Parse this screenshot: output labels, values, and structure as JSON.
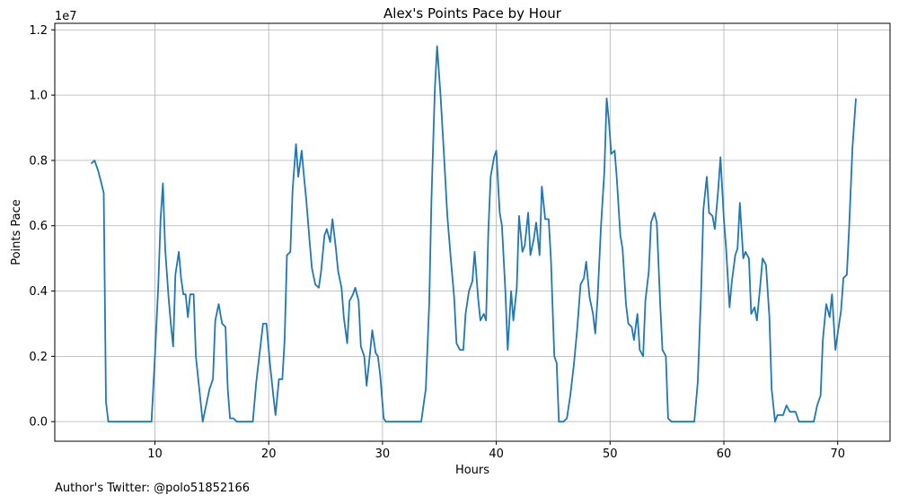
{
  "chart_data": {
    "type": "line",
    "title": "Alex's Points Pace by Hour",
    "xlabel": "Hours",
    "ylabel": "Points Pace",
    "y_offset_label": "1e7",
    "xlim": [
      1.2,
      74.6
    ],
    "ylim": [
      -0.06,
      1.22
    ],
    "x_ticks": [
      10,
      20,
      30,
      40,
      50,
      60,
      70
    ],
    "x_tick_labels": [
      "10",
      "20",
      "30",
      "40",
      "50",
      "60",
      "70"
    ],
    "y_ticks": [
      0.0,
      0.2,
      0.4,
      0.6,
      0.8,
      1.0,
      1.2
    ],
    "y_tick_labels": [
      "0.0",
      "0.2",
      "0.4",
      "0.6",
      "0.8",
      "1.0",
      "1.2"
    ],
    "grid": true,
    "series": [
      {
        "color": "#1f77b4",
        "points": [
          [
            4.4,
            0.79
          ],
          [
            4.7,
            0.8
          ],
          [
            5.0,
            0.77
          ],
          [
            5.3,
            0.73
          ],
          [
            5.5,
            0.7
          ],
          [
            5.7,
            0.06
          ],
          [
            5.9,
            0.0
          ],
          [
            6.5,
            0.0
          ],
          [
            7.5,
            0.0
          ],
          [
            8.5,
            0.0
          ],
          [
            9.7,
            0.0
          ],
          [
            10.0,
            0.2
          ],
          [
            10.3,
            0.42
          ],
          [
            10.5,
            0.62
          ],
          [
            10.7,
            0.73
          ],
          [
            10.9,
            0.53
          ],
          [
            11.2,
            0.38
          ],
          [
            11.4,
            0.3
          ],
          [
            11.6,
            0.23
          ],
          [
            11.8,
            0.45
          ],
          [
            12.1,
            0.52
          ],
          [
            12.3,
            0.44
          ],
          [
            12.5,
            0.39
          ],
          [
            12.7,
            0.39
          ],
          [
            12.9,
            0.32
          ],
          [
            13.1,
            0.39
          ],
          [
            13.4,
            0.39
          ],
          [
            13.6,
            0.2
          ],
          [
            13.9,
            0.1
          ],
          [
            14.2,
            0.0
          ],
          [
            14.5,
            0.05
          ],
          [
            14.8,
            0.1
          ],
          [
            15.1,
            0.13
          ],
          [
            15.3,
            0.31
          ],
          [
            15.6,
            0.36
          ],
          [
            15.9,
            0.3
          ],
          [
            16.2,
            0.29
          ],
          [
            16.4,
            0.1
          ],
          [
            16.6,
            0.01
          ],
          [
            16.9,
            0.01
          ],
          [
            17.2,
            0.0
          ],
          [
            17.6,
            0.0
          ],
          [
            18.2,
            0.0
          ],
          [
            18.6,
            0.0
          ],
          [
            18.9,
            0.12
          ],
          [
            19.2,
            0.21
          ],
          [
            19.5,
            0.3
          ],
          [
            19.8,
            0.3
          ],
          [
            20.1,
            0.18
          ],
          [
            20.4,
            0.08
          ],
          [
            20.6,
            0.02
          ],
          [
            20.9,
            0.13
          ],
          [
            21.2,
            0.13
          ],
          [
            21.4,
            0.25
          ],
          [
            21.6,
            0.51
          ],
          [
            21.9,
            0.52
          ],
          [
            22.1,
            0.71
          ],
          [
            22.4,
            0.85
          ],
          [
            22.6,
            0.75
          ],
          [
            22.9,
            0.83
          ],
          [
            23.1,
            0.75
          ],
          [
            23.3,
            0.68
          ],
          [
            23.6,
            0.55
          ],
          [
            23.8,
            0.47
          ],
          [
            24.1,
            0.42
          ],
          [
            24.4,
            0.41
          ],
          [
            24.6,
            0.46
          ],
          [
            24.9,
            0.57
          ],
          [
            25.1,
            0.59
          ],
          [
            25.4,
            0.55
          ],
          [
            25.6,
            0.62
          ],
          [
            25.9,
            0.53
          ],
          [
            26.1,
            0.46
          ],
          [
            26.4,
            0.41
          ],
          [
            26.6,
            0.32
          ],
          [
            26.9,
            0.24
          ],
          [
            27.1,
            0.37
          ],
          [
            27.4,
            0.39
          ],
          [
            27.6,
            0.41
          ],
          [
            27.9,
            0.37
          ],
          [
            28.1,
            0.23
          ],
          [
            28.4,
            0.2
          ],
          [
            28.6,
            0.11
          ],
          [
            28.9,
            0.21
          ],
          [
            29.1,
            0.28
          ],
          [
            29.4,
            0.21
          ],
          [
            29.6,
            0.2
          ],
          [
            29.8,
            0.14
          ],
          [
            30.1,
            0.01
          ],
          [
            30.3,
            0.0
          ],
          [
            31.0,
            0.0
          ],
          [
            32.0,
            0.0
          ],
          [
            33.0,
            0.0
          ],
          [
            33.4,
            0.0
          ],
          [
            33.8,
            0.1
          ],
          [
            34.1,
            0.36
          ],
          [
            34.3,
            0.68
          ],
          [
            34.6,
            1.02
          ],
          [
            34.8,
            1.15
          ],
          [
            35.1,
            1.0
          ],
          [
            35.4,
            0.82
          ],
          [
            35.7,
            0.63
          ],
          [
            36.0,
            0.5
          ],
          [
            36.3,
            0.38
          ],
          [
            36.5,
            0.24
          ],
          [
            36.8,
            0.22
          ],
          [
            37.1,
            0.22
          ],
          [
            37.3,
            0.33
          ],
          [
            37.6,
            0.4
          ],
          [
            37.9,
            0.43
          ],
          [
            38.1,
            0.52
          ],
          [
            38.4,
            0.38
          ],
          [
            38.6,
            0.31
          ],
          [
            38.9,
            0.33
          ],
          [
            39.1,
            0.31
          ],
          [
            39.3,
            0.58
          ],
          [
            39.5,
            0.75
          ],
          [
            39.8,
            0.81
          ],
          [
            40.0,
            0.83
          ],
          [
            40.3,
            0.64
          ],
          [
            40.5,
            0.6
          ],
          [
            40.8,
            0.4
          ],
          [
            41.0,
            0.22
          ],
          [
            41.3,
            0.4
          ],
          [
            41.5,
            0.31
          ],
          [
            41.8,
            0.41
          ],
          [
            42.0,
            0.63
          ],
          [
            42.3,
            0.52
          ],
          [
            42.5,
            0.54
          ],
          [
            42.8,
            0.64
          ],
          [
            43.0,
            0.51
          ],
          [
            43.3,
            0.56
          ],
          [
            43.5,
            0.61
          ],
          [
            43.8,
            0.51
          ],
          [
            44.0,
            0.72
          ],
          [
            44.3,
            0.62
          ],
          [
            44.6,
            0.62
          ],
          [
            44.8,
            0.5
          ],
          [
            45.1,
            0.2
          ],
          [
            45.3,
            0.18
          ],
          [
            45.5,
            0.0
          ],
          [
            45.9,
            0.0
          ],
          [
            46.2,
            0.01
          ],
          [
            46.5,
            0.08
          ],
          [
            46.8,
            0.17
          ],
          [
            47.1,
            0.28
          ],
          [
            47.4,
            0.42
          ],
          [
            47.7,
            0.44
          ],
          [
            47.9,
            0.49
          ],
          [
            48.2,
            0.38
          ],
          [
            48.5,
            0.33
          ],
          [
            48.7,
            0.27
          ],
          [
            48.9,
            0.38
          ],
          [
            49.2,
            0.6
          ],
          [
            49.5,
            0.77
          ],
          [
            49.7,
            0.99
          ],
          [
            49.9,
            0.92
          ],
          [
            50.1,
            0.82
          ],
          [
            50.4,
            0.83
          ],
          [
            50.6,
            0.74
          ],
          [
            50.9,
            0.57
          ],
          [
            51.1,
            0.53
          ],
          [
            51.4,
            0.36
          ],
          [
            51.6,
            0.3
          ],
          [
            51.9,
            0.29
          ],
          [
            52.1,
            0.25
          ],
          [
            52.4,
            0.33
          ],
          [
            52.6,
            0.22
          ],
          [
            52.9,
            0.2
          ],
          [
            53.1,
            0.37
          ],
          [
            53.4,
            0.46
          ],
          [
            53.6,
            0.61
          ],
          [
            53.9,
            0.64
          ],
          [
            54.1,
            0.61
          ],
          [
            54.4,
            0.36
          ],
          [
            54.6,
            0.22
          ],
          [
            54.9,
            0.2
          ],
          [
            55.1,
            0.01
          ],
          [
            55.4,
            0.0
          ],
          [
            56.0,
            0.0
          ],
          [
            57.0,
            0.0
          ],
          [
            57.4,
            0.0
          ],
          [
            57.7,
            0.12
          ],
          [
            58.0,
            0.4
          ],
          [
            58.2,
            0.65
          ],
          [
            58.5,
            0.75
          ],
          [
            58.7,
            0.64
          ],
          [
            59.0,
            0.63
          ],
          [
            59.2,
            0.59
          ],
          [
            59.5,
            0.71
          ],
          [
            59.7,
            0.81
          ],
          [
            60.0,
            0.62
          ],
          [
            60.2,
            0.53
          ],
          [
            60.5,
            0.35
          ],
          [
            60.7,
            0.43
          ],
          [
            61.0,
            0.51
          ],
          [
            61.2,
            0.53
          ],
          [
            61.4,
            0.67
          ],
          [
            61.7,
            0.5
          ],
          [
            61.9,
            0.52
          ],
          [
            62.2,
            0.5
          ],
          [
            62.4,
            0.33
          ],
          [
            62.7,
            0.35
          ],
          [
            62.9,
            0.31
          ],
          [
            63.2,
            0.42
          ],
          [
            63.4,
            0.5
          ],
          [
            63.7,
            0.48
          ],
          [
            64.0,
            0.32
          ],
          [
            64.2,
            0.1
          ],
          [
            64.5,
            0.0
          ],
          [
            64.7,
            0.02
          ],
          [
            65.0,
            0.02
          ],
          [
            65.2,
            0.02
          ],
          [
            65.5,
            0.05
          ],
          [
            65.8,
            0.03
          ],
          [
            66.0,
            0.03
          ],
          [
            66.3,
            0.03
          ],
          [
            66.6,
            0.0
          ],
          [
            67.0,
            0.0
          ],
          [
            67.6,
            0.0
          ],
          [
            67.9,
            0.0
          ],
          [
            68.2,
            0.05
          ],
          [
            68.5,
            0.08
          ],
          [
            68.7,
            0.25
          ],
          [
            69.0,
            0.36
          ],
          [
            69.3,
            0.32
          ],
          [
            69.5,
            0.39
          ],
          [
            69.8,
            0.22
          ],
          [
            70.0,
            0.27
          ],
          [
            70.3,
            0.34
          ],
          [
            70.5,
            0.44
          ],
          [
            70.8,
            0.45
          ],
          [
            71.0,
            0.59
          ],
          [
            71.3,
            0.84
          ],
          [
            71.6,
            0.99
          ]
        ]
      }
    ]
  },
  "footer": {
    "note": "Author's Twitter: @polo51852166"
  }
}
